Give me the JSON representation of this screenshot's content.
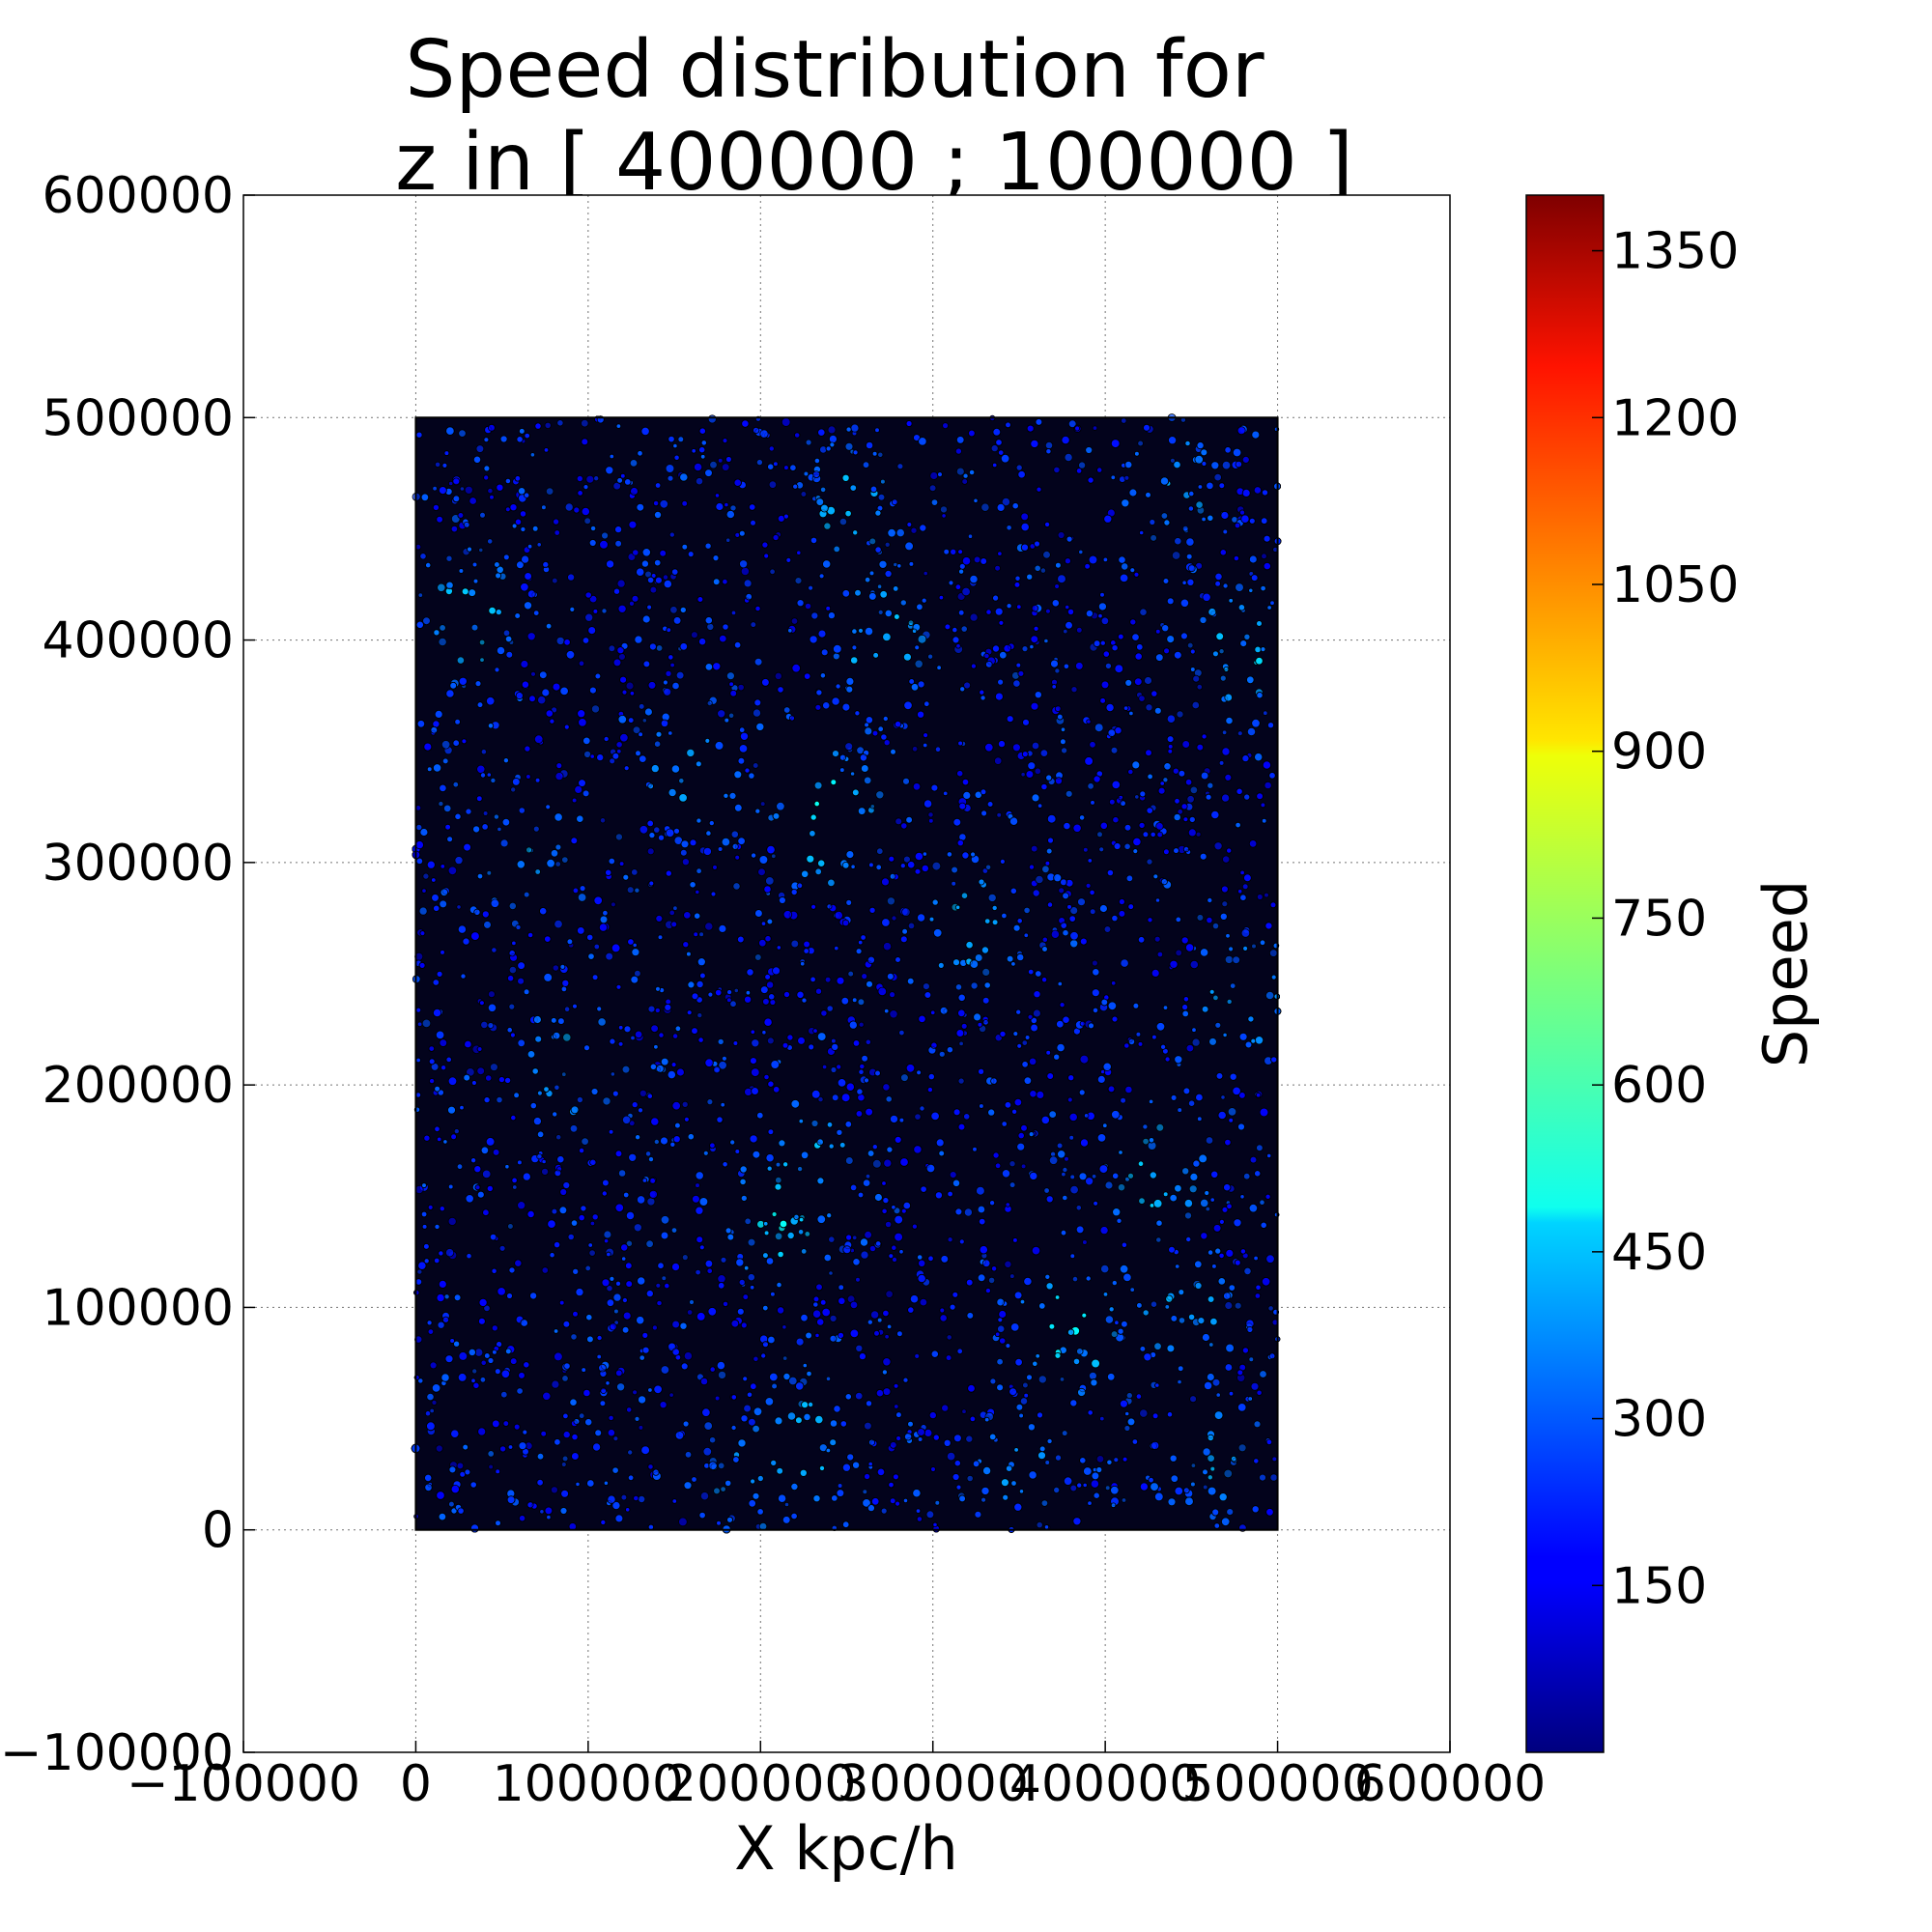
{
  "chart_data": {
    "type": "scatter",
    "title_lines": [
      "Speed distribution for",
      "z in [ 400000 ; 100000 ]"
    ],
    "xlabel": "X kpc/h",
    "ylabel": "",
    "xlim": [
      -100000,
      600000
    ],
    "ylim": [
      -100000,
      600000
    ],
    "x_ticks": [
      -100000,
      0,
      100000,
      200000,
      300000,
      400000,
      500000,
      600000
    ],
    "x_tick_labels": [
      "−100000",
      "0",
      "100000",
      "200000",
      "300000",
      "400000",
      "500000",
      "600000"
    ],
    "y_ticks": [
      -100000,
      0,
      100000,
      200000,
      300000,
      400000,
      500000,
      600000
    ],
    "y_tick_labels": [
      "−100000",
      "0",
      "100000",
      "200000",
      "300000",
      "400000",
      "500000",
      "600000"
    ],
    "grid": true,
    "grid_style": "dotted",
    "points_region": {
      "x": [
        0,
        500000
      ],
      "y": [
        0,
        500000
      ]
    },
    "hotspots": [
      {
        "x": 225000,
        "y": 40000,
        "speed": 500
      },
      {
        "x": 210000,
        "y": 140000,
        "speed": 520
      },
      {
        "x": 230000,
        "y": 160000,
        "speed": 480
      },
      {
        "x": 430000,
        "y": 160000,
        "speed": 500
      },
      {
        "x": 445000,
        "y": 95000,
        "speed": 470
      },
      {
        "x": 380000,
        "y": 90000,
        "speed": 540
      },
      {
        "x": 240000,
        "y": 320000,
        "speed": 600
      },
      {
        "x": 320000,
        "y": 270000,
        "speed": 470
      },
      {
        "x": 160000,
        "y": 340000,
        "speed": 450
      },
      {
        "x": 270000,
        "y": 400000,
        "speed": 480
      },
      {
        "x": 480000,
        "y": 395000,
        "speed": 500
      },
      {
        "x": 30000,
        "y": 410000,
        "speed": 500
      },
      {
        "x": 250000,
        "y": 460000,
        "speed": 450
      },
      {
        "x": 440000,
        "y": 470000,
        "speed": 430
      },
      {
        "x": 90000,
        "y": 210000,
        "speed": 450
      },
      {
        "x": 480000,
        "y": 240000,
        "speed": 450
      },
      {
        "x": 460000,
        "y": 30000,
        "speed": 430
      },
      {
        "x": 350000,
        "y": 30000,
        "speed": 400
      },
      {
        "x": 60000,
        "y": 300000,
        "speed": 420
      },
      {
        "x": 190000,
        "y": 20000,
        "speed": 420
      }
    ],
    "colorbar": {
      "label": "Speed",
      "min": 0,
      "max": 1400,
      "ticks": [
        150,
        300,
        450,
        600,
        750,
        900,
        1050,
        1200,
        1350
      ],
      "colormap": "jet"
    }
  }
}
